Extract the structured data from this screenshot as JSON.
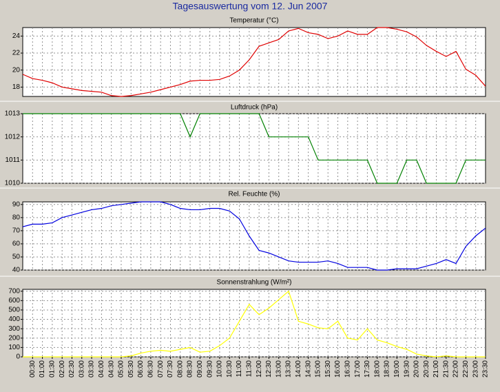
{
  "title": "Tagesauswertung vom 12. Jun 2007",
  "chart_data": [
    {
      "type": "line",
      "title": "Temperatur (°C)",
      "color": "#e00000",
      "grid": true,
      "ylim": [
        16.9,
        25
      ],
      "yticks": [
        18,
        20,
        22,
        24
      ],
      "values": [
        19.5,
        19.0,
        18.8,
        18.5,
        18.0,
        17.8,
        17.6,
        17.5,
        17.4,
        17.0,
        16.9,
        17.0,
        17.2,
        17.4,
        17.7,
        18.0,
        18.3,
        18.7,
        18.8,
        18.8,
        18.9,
        19.3,
        20.0,
        21.2,
        22.8,
        23.2,
        23.6,
        24.6,
        24.9,
        24.4,
        24.2,
        23.7,
        24.0,
        24.6,
        24.2,
        24.2,
        25.0,
        25.0,
        24.8,
        24.5,
        23.9,
        22.9,
        22.2,
        21.6,
        22.2,
        20.1,
        19.4,
        18.1
      ]
    },
    {
      "type": "line",
      "title": "Luftdruck (hPa)",
      "color": "#008000",
      "grid": true,
      "ylim": [
        1010,
        1013
      ],
      "yticks": [
        1010,
        1011,
        1012,
        1013
      ],
      "values": [
        1013,
        1013,
        1013,
        1013,
        1013,
        1013,
        1013,
        1013,
        1013,
        1013,
        1013,
        1013,
        1013,
        1013,
        1013,
        1013,
        1013,
        1012,
        1013,
        1013,
        1013,
        1013,
        1013,
        1013,
        1013,
        1012,
        1012,
        1012,
        1012,
        1012,
        1011,
        1011,
        1011,
        1011,
        1011,
        1011,
        1010,
        1010,
        1010,
        1011,
        1011,
        1010,
        1010,
        1010,
        1010,
        1011,
        1011,
        1011
      ]
    },
    {
      "type": "line",
      "title": "Rel. Feuchte (%)",
      "color": "#0000e0",
      "grid": true,
      "ylim": [
        40,
        92
      ],
      "yticks": [
        40,
        50,
        60,
        70,
        80,
        90
      ],
      "values": [
        73,
        75,
        75,
        76,
        80,
        82,
        84,
        86,
        87,
        89,
        90,
        91,
        92,
        92,
        92,
        90,
        87,
        86,
        86,
        87,
        87,
        85,
        79,
        66,
        55,
        53,
        50,
        47,
        46,
        46,
        46,
        47,
        45,
        42,
        42,
        42,
        40,
        40,
        41,
        41,
        41,
        43,
        45,
        48,
        45,
        58,
        66,
        72
      ]
    },
    {
      "type": "line",
      "title": "Sonnenstrahlung (W/m²)",
      "color": "#ffff00",
      "grid": true,
      "ylim": [
        0,
        720
      ],
      "yticks": [
        0,
        100,
        200,
        300,
        400,
        500,
        600,
        700
      ],
      "categories": [
        null,
        "00:30",
        "01:00",
        "01:30",
        "02:00",
        "02:30",
        "03:00",
        "03:30",
        "04:00",
        "04:30",
        "05:00",
        "05:30",
        "06:00",
        "06:30",
        "07:00",
        "07:30",
        "08:00",
        "08:30",
        "09:00",
        "09:30",
        "10:00",
        "10:30",
        "11:00",
        "11:30",
        "12:00",
        "12:30",
        "13:00",
        "13:30",
        "14:00",
        "14:30",
        "15:00",
        "15:30",
        "16:00",
        "16:30",
        "17:00",
        "17:30",
        "18:00",
        "18:30",
        "19:00",
        "19:30",
        "20:00",
        "20:30",
        "21:00",
        "21:30",
        "22:00",
        "22:30",
        "23:00",
        "23:30"
      ],
      "values": [
        0,
        0,
        0,
        0,
        0,
        0,
        0,
        0,
        0,
        0,
        0,
        10,
        40,
        60,
        70,
        60,
        80,
        100,
        50,
        60,
        120,
        200,
        380,
        560,
        450,
        520,
        610,
        700,
        380,
        350,
        310,
        300,
        380,
        200,
        180,
        300,
        180,
        150,
        110,
        80,
        30,
        10,
        0,
        10,
        0,
        0,
        0,
        0
      ]
    }
  ]
}
